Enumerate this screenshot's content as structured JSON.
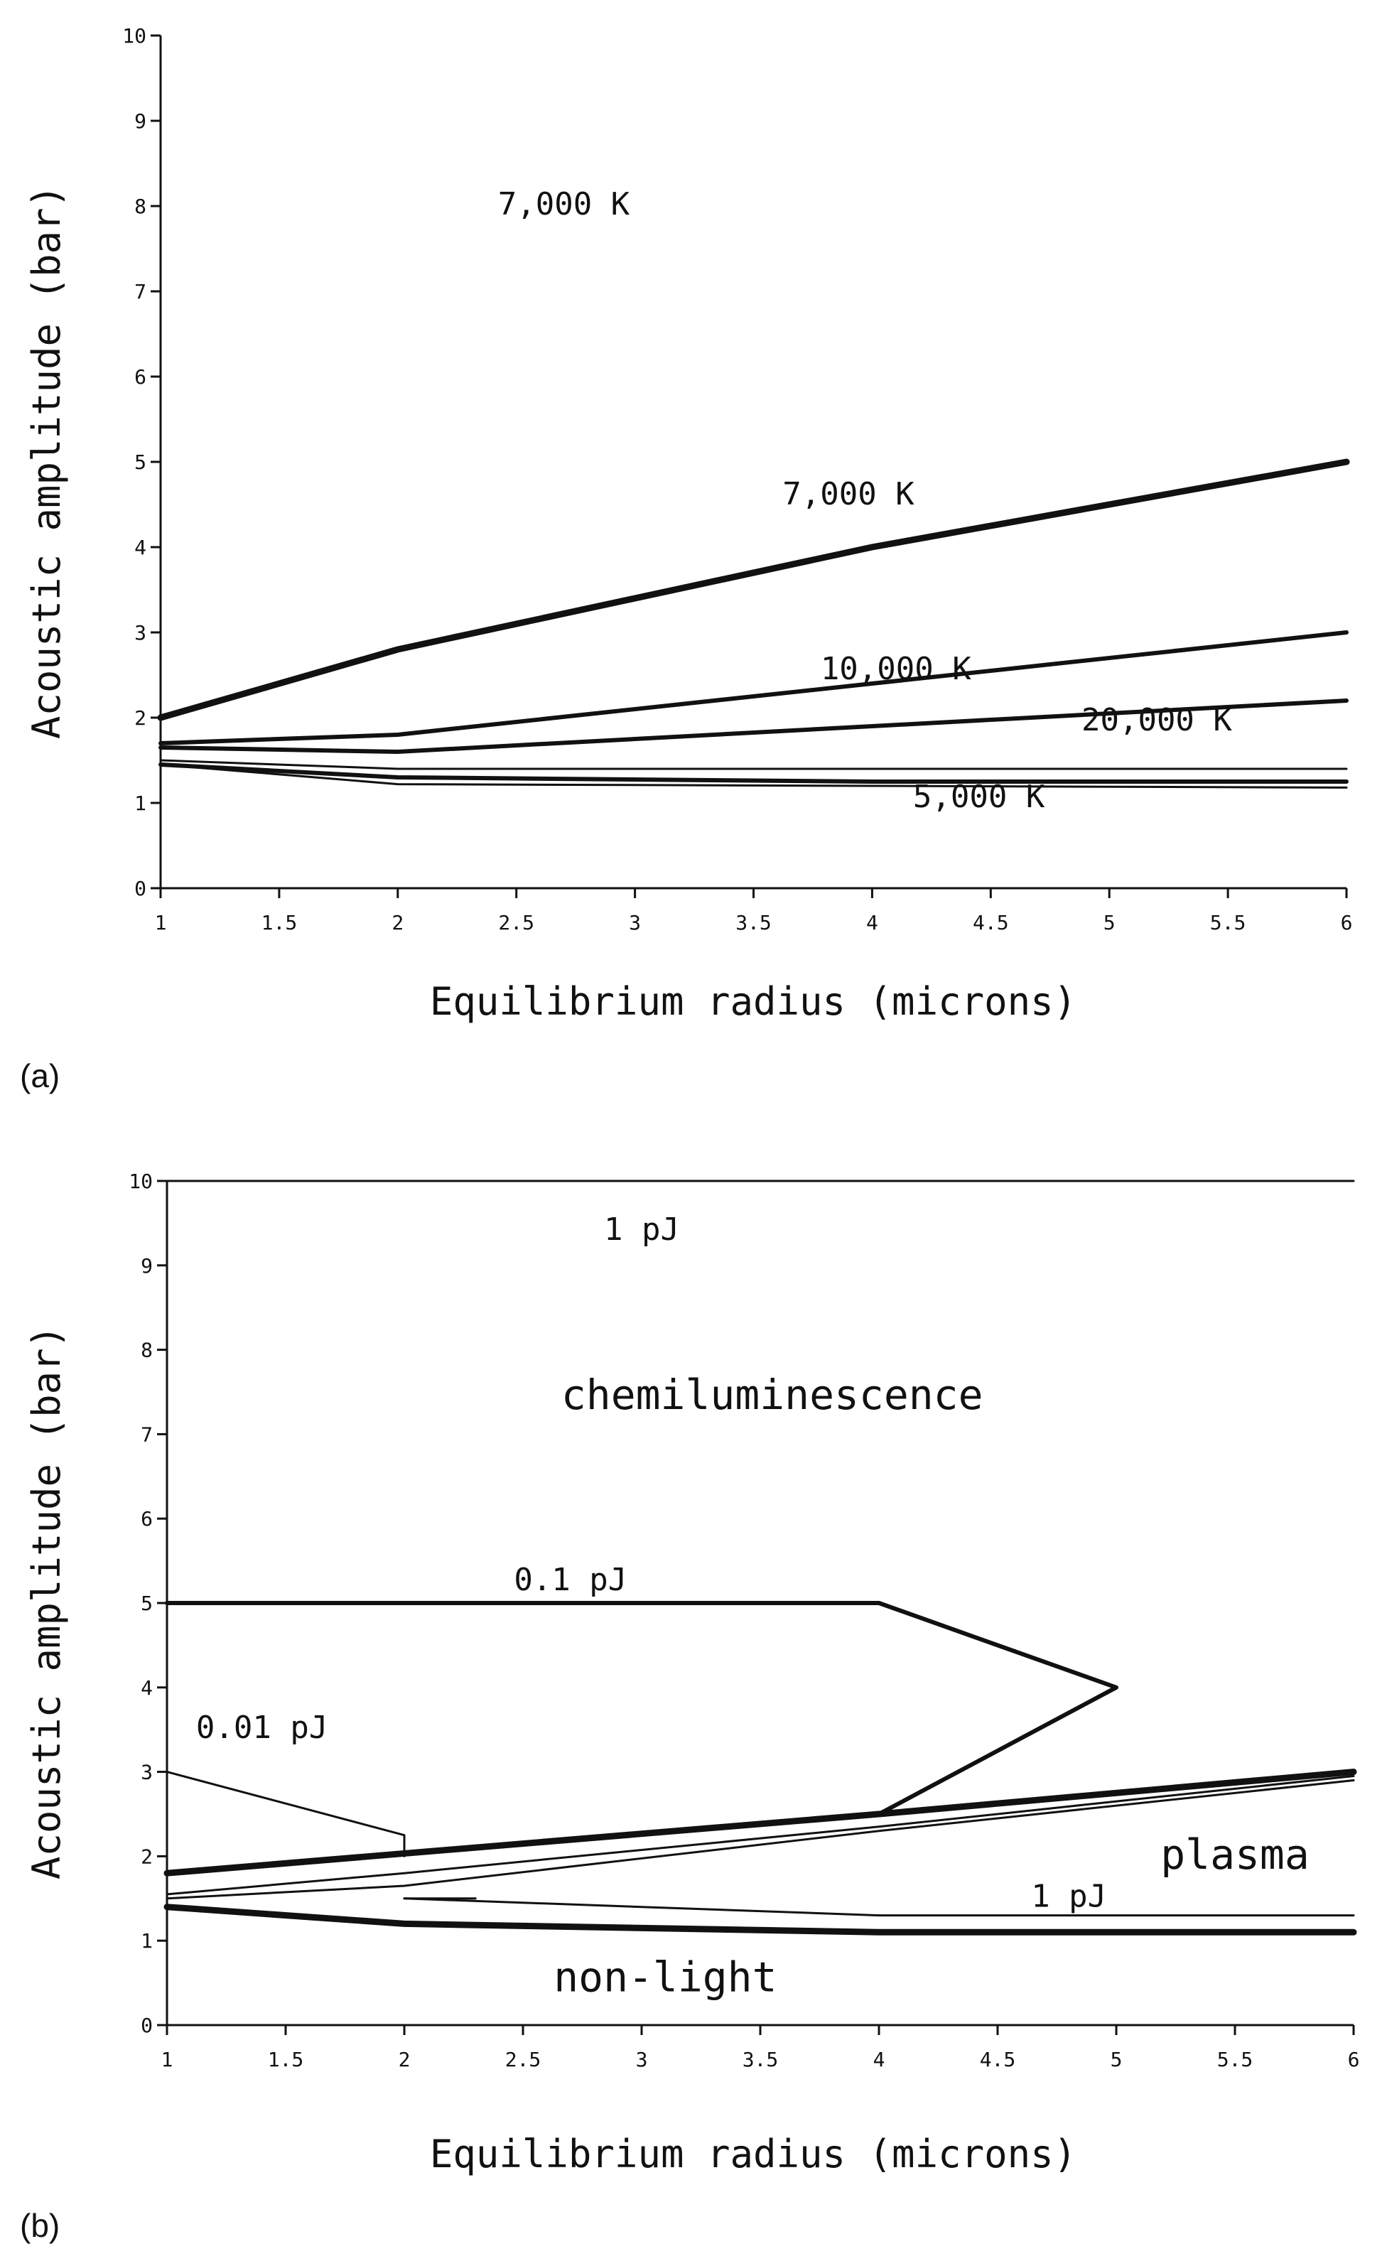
{
  "chart_data": [
    {
      "id": "a",
      "panel_label": "(a)",
      "type": "line",
      "xlabel": "Equilibrium radius (microns)",
      "ylabel": "Acoustic amplitude (bar)",
      "xlim": [
        1,
        6
      ],
      "ylim": [
        0,
        10
      ],
      "x_ticks": [
        "1",
        "1.5",
        "2",
        "2.5",
        "3",
        "3.5",
        "4",
        "4.5",
        "5",
        "5.5",
        "6"
      ],
      "y_ticks": [
        "0",
        "1",
        "2",
        "3",
        "4",
        "5",
        "6",
        "7",
        "8",
        "9",
        "10"
      ],
      "series": [
        {
          "name": "7,000 K",
          "weight": "heavy",
          "points": [
            [
              1,
              2.0
            ],
            [
              2,
              2.8
            ],
            [
              4,
              4.0
            ],
            [
              6,
              5.0
            ]
          ]
        },
        {
          "name": "10,000 K",
          "weight": "medium",
          "points": [
            [
              1,
              1.7
            ],
            [
              2,
              1.8
            ],
            [
              4,
              2.4
            ],
            [
              6,
              3.0
            ]
          ]
        },
        {
          "name": "20,000 K",
          "weight": "medium",
          "points": [
            [
              1,
              1.65
            ],
            [
              2,
              1.6
            ],
            [
              4,
              1.9
            ],
            [
              6,
              2.2
            ]
          ]
        },
        {
          "name": "boundary",
          "weight": "thin",
          "points": [
            [
              1,
              1.5
            ],
            [
              2,
              1.4
            ],
            [
              6,
              1.4
            ]
          ]
        },
        {
          "name": "5,000 K",
          "weight": "medium",
          "points": [
            [
              1,
              1.45
            ],
            [
              2,
              1.3
            ],
            [
              4,
              1.25
            ],
            [
              6,
              1.25
            ]
          ]
        },
        {
          "name": "lower boundary",
          "weight": "thin",
          "points": [
            [
              1,
              1.45
            ],
            [
              2,
              1.22
            ],
            [
              4,
              1.2
            ],
            [
              6,
              1.18
            ]
          ]
        }
      ],
      "annotations": [
        {
          "text": "7,000 K",
          "x": 2.7,
          "y": 7.9,
          "size": "label"
        },
        {
          "text": "7,000 K",
          "x": 3.9,
          "y": 4.5,
          "size": "label"
        },
        {
          "text": "10,000 K",
          "x": 4.1,
          "y": 2.45,
          "size": "label"
        },
        {
          "text": "20,000 K",
          "x": 5.2,
          "y": 1.85,
          "size": "label"
        },
        {
          "text": "5,000 K",
          "x": 4.45,
          "y": 0.95,
          "size": "label"
        }
      ]
    },
    {
      "id": "b",
      "panel_label": "(b)",
      "type": "line",
      "xlabel": "Equilibrium radius (microns)",
      "ylabel": "Acoustic amplitude (bar)",
      "xlim": [
        1,
        6
      ],
      "ylim": [
        0,
        10
      ],
      "x_ticks": [
        "1",
        "1.5",
        "2",
        "2.5",
        "3",
        "3.5",
        "4",
        "4.5",
        "5",
        "5.5",
        "6"
      ],
      "y_ticks": [
        "0",
        "1",
        "2",
        "3",
        "4",
        "5",
        "6",
        "7",
        "8",
        "9",
        "10"
      ],
      "series": [
        {
          "name": "1 pJ top",
          "weight": "thin",
          "points": [
            [
              1,
              10.0
            ],
            [
              6,
              10.0
            ]
          ]
        },
        {
          "name": "0.1 pJ",
          "weight": "medium",
          "points": [
            [
              1,
              5.0
            ],
            [
              4,
              5.0
            ],
            [
              5,
              4.0
            ],
            [
              4,
              2.5
            ]
          ]
        },
        {
          "name": "0.01 pJ",
          "weight": "thin",
          "points": [
            [
              1,
              3.0
            ],
            [
              2,
              2.25
            ],
            [
              2,
              2.0
            ]
          ]
        },
        {
          "name": "plasma upper",
          "weight": "heavy",
          "points": [
            [
              1,
              1.8
            ],
            [
              4,
              2.5
            ],
            [
              6,
              3.0
            ]
          ]
        },
        {
          "name": "inner 1",
          "weight": "thin",
          "points": [
            [
              1,
              1.55
            ],
            [
              2,
              1.8
            ],
            [
              4,
              2.35
            ],
            [
              6,
              2.95
            ]
          ]
        },
        {
          "name": "inner 2",
          "weight": "thin",
          "points": [
            [
              1,
              1.5
            ],
            [
              2,
              1.65
            ],
            [
              4,
              2.3
            ],
            [
              6,
              2.9
            ]
          ]
        },
        {
          "name": "1 pJ",
          "weight": "thin",
          "points": [
            [
              2,
              1.5
            ],
            [
              4,
              1.3
            ],
            [
              6,
              1.3
            ]
          ]
        },
        {
          "name": "1 pJ stub",
          "weight": "thin",
          "points": [
            [
              2,
              1.5
            ],
            [
              2.3,
              1.5
            ]
          ]
        },
        {
          "name": "non-light boundary",
          "weight": "heavy",
          "points": [
            [
              1,
              1.4
            ],
            [
              2,
              1.2
            ],
            [
              4,
              1.1
            ],
            [
              6,
              1.1
            ]
          ]
        }
      ],
      "annotations": [
        {
          "text": "1 pJ",
          "x": 3.0,
          "y": 9.3,
          "size": "label"
        },
        {
          "text": "chemiluminescence",
          "x": 3.55,
          "y": 7.3,
          "size": "region"
        },
        {
          "text": "0.1 pJ",
          "x": 2.7,
          "y": 5.15,
          "size": "label"
        },
        {
          "text": "0.01 pJ",
          "x": 1.4,
          "y": 3.4,
          "size": "label"
        },
        {
          "text": "plasma",
          "x": 5.5,
          "y": 1.85,
          "size": "region"
        },
        {
          "text": "1 pJ",
          "x": 4.8,
          "y": 1.4,
          "size": "label"
        },
        {
          "text": "non-light",
          "x": 3.1,
          "y": 0.4,
          "size": "region"
        }
      ]
    }
  ]
}
